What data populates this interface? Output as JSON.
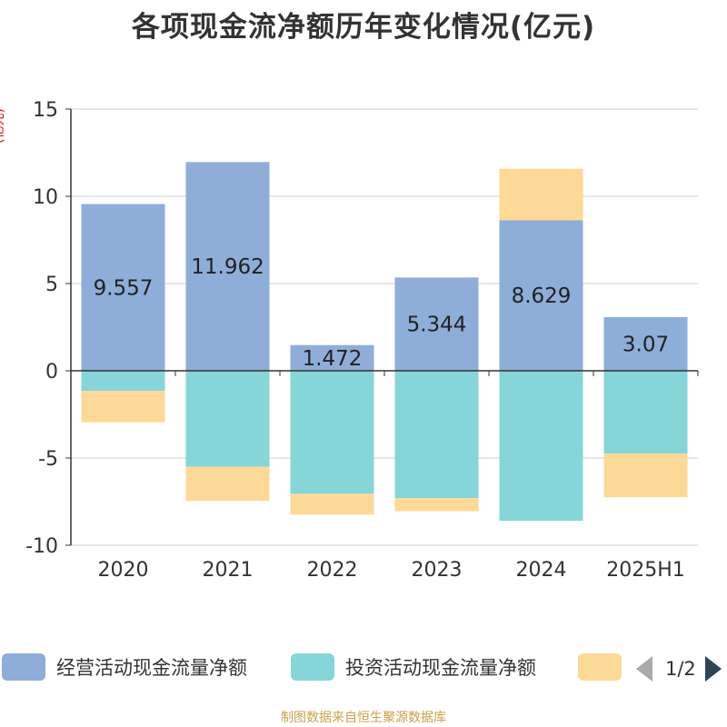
{
  "title": "各项现金流净额历年变化情况(亿元)",
  "unit_label": "(亿元)",
  "footer": "制图数据来自恒生聚源数据库",
  "legend": {
    "items": [
      {
        "label": "经营活动现金流量净额",
        "color": "#8eadd9"
      },
      {
        "label": "投资活动现金流量净额",
        "color": "#86d5d8"
      },
      {
        "label": "",
        "color": "#fdd997"
      }
    ],
    "page_text": "1/2"
  },
  "chart_data": {
    "type": "bar",
    "stacked": true,
    "title": "各项现金流净额历年变化情况(亿元)",
    "ylabel": "(亿元)",
    "ylim": [
      -10,
      15
    ],
    "yticks": [
      -10,
      -5,
      0,
      5,
      10,
      15
    ],
    "grid": true,
    "legend_position": "bottom",
    "categories": [
      "2020",
      "2021",
      "2022",
      "2023",
      "2024",
      "2025H1"
    ],
    "series": [
      {
        "name": "经营活动现金流量净额",
        "color": "#8eadd9",
        "values": [
          9.557,
          11.962,
          1.472,
          5.344,
          8.629,
          3.07
        ],
        "labels": [
          "9.557",
          "11.962",
          "1.472",
          "5.344",
          "8.629",
          "3.07"
        ]
      },
      {
        "name": "投资活动现金流量净额",
        "color": "#86d5d8",
        "values": [
          -1.15,
          -5.5,
          -7.05,
          -7.3,
          -8.6,
          -4.75
        ]
      },
      {
        "color": "#fdd997",
        "values": [
          -1.8,
          -1.95,
          -1.2,
          -0.75,
          2.95,
          -2.5
        ]
      }
    ]
  }
}
